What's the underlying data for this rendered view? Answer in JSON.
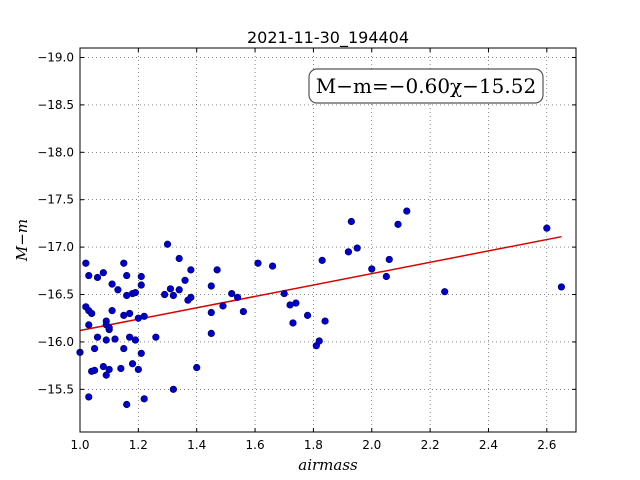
{
  "chart_data": {
    "type": "scatter",
    "title": "2021-11-30_194404",
    "xlabel": "airmass",
    "ylabel": "M−m",
    "xlim": [
      1.0,
      2.7
    ],
    "ylim": [
      -19.1,
      -15.05
    ],
    "y_inverted": true,
    "grid": true,
    "x_ticks": [
      1.0,
      1.2,
      1.4,
      1.6,
      1.8,
      2.0,
      2.2,
      2.4,
      2.6
    ],
    "x_tick_labels": [
      "1.0",
      "1.2",
      "1.4",
      "1.6",
      "1.8",
      "2.0",
      "2.2",
      "2.4",
      "2.6"
    ],
    "y_ticks": [
      -15.5,
      -16.0,
      -16.5,
      -17.0,
      -17.5,
      -18.0,
      -18.5,
      -19.0
    ],
    "y_tick_labels": [
      "−15.5",
      "−16.0",
      "−16.5",
      "−17.0",
      "−17.5",
      "−18.0",
      "−18.5",
      "−19.0"
    ],
    "annotation": "M−m=−0.60χ−15.52",
    "annotation_placement": "top-right",
    "fit": {
      "slope": -0.6,
      "intercept": -15.52,
      "x_range": [
        1.0,
        2.65
      ],
      "color": "#dd0000"
    },
    "marker_color": "#0000cc",
    "points": [
      [
        1.0,
        -15.89
      ],
      [
        1.02,
        -16.37
      ],
      [
        1.02,
        -16.83
      ],
      [
        1.03,
        -16.7
      ],
      [
        1.03,
        -16.33
      ],
      [
        1.03,
        -16.18
      ],
      [
        1.03,
        -15.42
      ],
      [
        1.04,
        -15.69
      ],
      [
        1.04,
        -16.3
      ],
      [
        1.05,
        -15.7
      ],
      [
        1.05,
        -15.93
      ],
      [
        1.06,
        -16.05
      ],
      [
        1.06,
        -16.68
      ],
      [
        1.08,
        -15.74
      ],
      [
        1.08,
        -16.73
      ],
      [
        1.09,
        -15.65
      ],
      [
        1.09,
        -16.22
      ],
      [
        1.09,
        -16.18
      ],
      [
        1.09,
        -16.02
      ],
      [
        1.1,
        -15.71
      ],
      [
        1.1,
        -16.13
      ],
      [
        1.1,
        -16.15
      ],
      [
        1.11,
        -16.61
      ],
      [
        1.11,
        -16.33
      ],
      [
        1.12,
        -16.03
      ],
      [
        1.13,
        -16.55
      ],
      [
        1.14,
        -15.72
      ],
      [
        1.15,
        -16.28
      ],
      [
        1.15,
        -16.83
      ],
      [
        1.15,
        -15.93
      ],
      [
        1.16,
        -16.49
      ],
      [
        1.16,
        -16.7
      ],
      [
        1.16,
        -15.34
      ],
      [
        1.17,
        -16.3
      ],
      [
        1.17,
        -16.05
      ],
      [
        1.18,
        -15.77
      ],
      [
        1.18,
        -16.51
      ],
      [
        1.19,
        -16.02
      ],
      [
        1.19,
        -16.52
      ],
      [
        1.2,
        -16.25
      ],
      [
        1.2,
        -15.71
      ],
      [
        1.21,
        -15.88
      ],
      [
        1.21,
        -16.6
      ],
      [
        1.21,
        -16.69
      ],
      [
        1.22,
        -15.4
      ],
      [
        1.22,
        -16.27
      ],
      [
        1.26,
        -16.05
      ],
      [
        1.29,
        -16.5
      ],
      [
        1.3,
        -17.03
      ],
      [
        1.31,
        -16.56
      ],
      [
        1.32,
        -16.49
      ],
      [
        1.32,
        -15.5
      ],
      [
        1.34,
        -16.55
      ],
      [
        1.34,
        -16.88
      ],
      [
        1.36,
        -16.65
      ],
      [
        1.37,
        -16.44
      ],
      [
        1.38,
        -16.47
      ],
      [
        1.38,
        -16.76
      ],
      [
        1.4,
        -15.73
      ],
      [
        1.45,
        -16.09
      ],
      [
        1.45,
        -16.31
      ],
      [
        1.45,
        -16.59
      ],
      [
        1.47,
        -16.76
      ],
      [
        1.49,
        -16.38
      ],
      [
        1.52,
        -16.51
      ],
      [
        1.54,
        -16.47
      ],
      [
        1.56,
        -16.32
      ],
      [
        1.61,
        -16.83
      ],
      [
        1.66,
        -16.8
      ],
      [
        1.7,
        -16.51
      ],
      [
        1.72,
        -16.39
      ],
      [
        1.73,
        -16.2
      ],
      [
        1.74,
        -16.41
      ],
      [
        1.78,
        -16.28
      ],
      [
        1.81,
        -15.96
      ],
      [
        1.82,
        -16.01
      ],
      [
        1.83,
        -16.86
      ],
      [
        1.84,
        -16.22
      ],
      [
        1.92,
        -16.95
      ],
      [
        1.93,
        -17.27
      ],
      [
        1.95,
        -16.99
      ],
      [
        2.0,
        -16.77
      ],
      [
        2.05,
        -16.69
      ],
      [
        2.06,
        -16.87
      ],
      [
        2.09,
        -17.24
      ],
      [
        2.12,
        -17.38
      ],
      [
        2.25,
        -16.53
      ],
      [
        2.6,
        -17.2
      ],
      [
        2.65,
        -16.58
      ]
    ]
  }
}
